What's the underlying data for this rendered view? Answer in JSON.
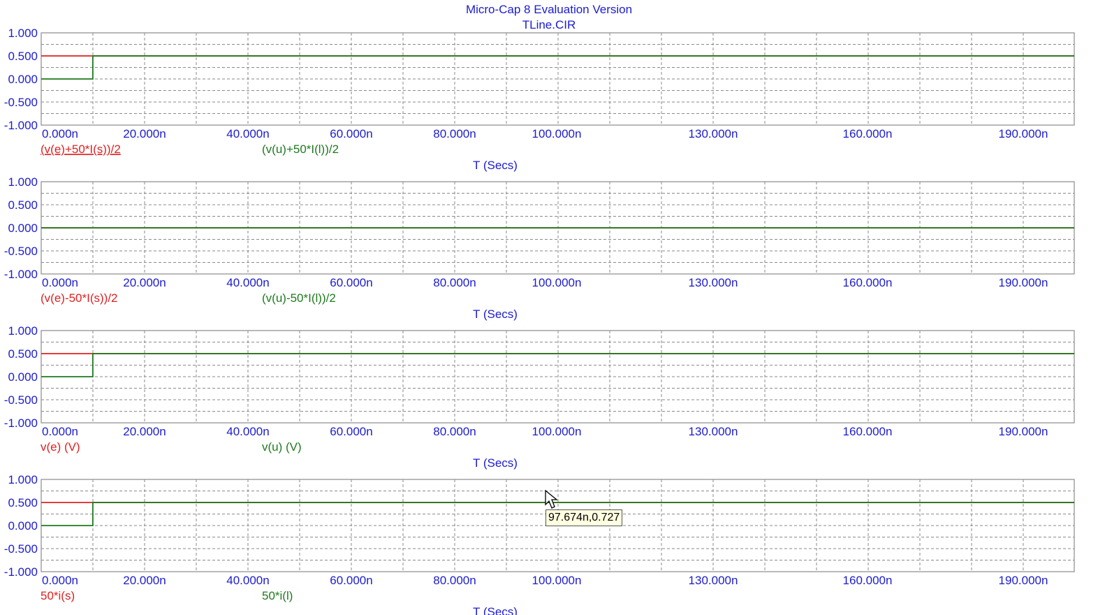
{
  "window": {
    "title": "Micro-Cap 8 Evaluation Version",
    "subtitle": "TLine.CIR"
  },
  "colors": {
    "axis_text": "#1c1cd0",
    "grid": "#8a8a8a",
    "series_red": "#e02020",
    "series_green": "#1e7a1e",
    "tooltip_bg": "#ffffe1"
  },
  "cursor": {
    "tooltip": "97.674n,0.727",
    "x_ns": 97.674,
    "y": 0.727
  },
  "chart_data": [
    {
      "type": "line",
      "xlabel": "T (Secs)",
      "x_ticks": [
        "0.000n",
        "20.000n",
        "40.000n",
        "60.000n",
        "80.000n",
        "100.000n",
        "130.000n",
        "160.000n",
        "190.000n"
      ],
      "y_ticks": [
        "1.000",
        "0.500",
        "0.000",
        "-0.500",
        "-1.000"
      ],
      "xlim_ns": [
        0,
        200
      ],
      "ylim": [
        -1.0,
        1.0
      ],
      "grid": true,
      "series": [
        {
          "name": "(v(e)+50*I(s))/2",
          "color": "red",
          "points": [
            [
              0,
              0.5
            ],
            [
              200,
              0.5
            ]
          ]
        },
        {
          "name": "(v(u)+50*I(l))/2",
          "color": "green",
          "points": [
            [
              0,
              0
            ],
            [
              10,
              0
            ],
            [
              10,
              0.5
            ],
            [
              200,
              0.5
            ]
          ]
        }
      ]
    },
    {
      "type": "line",
      "xlabel": "T (Secs)",
      "x_ticks": [
        "0.000n",
        "20.000n",
        "40.000n",
        "60.000n",
        "80.000n",
        "100.000n",
        "130.000n",
        "160.000n",
        "190.000n"
      ],
      "y_ticks": [
        "1.000",
        "0.500",
        "0.000",
        "-0.500",
        "-1.000"
      ],
      "xlim_ns": [
        0,
        200
      ],
      "ylim": [
        -1.0,
        1.0
      ],
      "grid": true,
      "series": [
        {
          "name": "(v(e)-50*I(s))/2",
          "color": "red",
          "points": [
            [
              0,
              0
            ],
            [
              200,
              0
            ]
          ]
        },
        {
          "name": "(v(u)-50*I(l))/2",
          "color": "green",
          "points": [
            [
              0,
              0
            ],
            [
              200,
              0
            ]
          ]
        }
      ]
    },
    {
      "type": "line",
      "xlabel": "T (Secs)",
      "x_ticks": [
        "0.000n",
        "20.000n",
        "40.000n",
        "60.000n",
        "80.000n",
        "100.000n",
        "130.000n",
        "160.000n",
        "190.000n"
      ],
      "y_ticks": [
        "1.000",
        "0.500",
        "0.000",
        "-0.500",
        "-1.000"
      ],
      "xlim_ns": [
        0,
        200
      ],
      "ylim": [
        -1.0,
        1.0
      ],
      "grid": true,
      "series": [
        {
          "name": "v(e) (V)",
          "color": "red",
          "points": [
            [
              0,
              0.5
            ],
            [
              200,
              0.5
            ]
          ]
        },
        {
          "name": "v(u) (V)",
          "color": "green",
          "points": [
            [
              0,
              0
            ],
            [
              10,
              0
            ],
            [
              10,
              0.5
            ],
            [
              200,
              0.5
            ]
          ]
        }
      ]
    },
    {
      "type": "line",
      "xlabel": "T (Secs)",
      "x_ticks": [
        "0.000n",
        "20.000n",
        "40.000n",
        "60.000n",
        "80.000n",
        "100.000n",
        "130.000n",
        "160.000n",
        "190.000n"
      ],
      "y_ticks": [
        "1.000",
        "0.500",
        "0.000",
        "-0.500",
        "-1.000"
      ],
      "xlim_ns": [
        0,
        200
      ],
      "ylim": [
        -1.0,
        1.0
      ],
      "grid": true,
      "series": [
        {
          "name": "50*i(s)",
          "color": "red",
          "points": [
            [
              0,
              0.5
            ],
            [
              200,
              0.5
            ]
          ]
        },
        {
          "name": "50*i(l)",
          "color": "green",
          "points": [
            [
              0,
              0
            ],
            [
              10,
              0
            ],
            [
              10,
              0.5
            ],
            [
              200,
              0.5
            ]
          ]
        }
      ]
    }
  ]
}
